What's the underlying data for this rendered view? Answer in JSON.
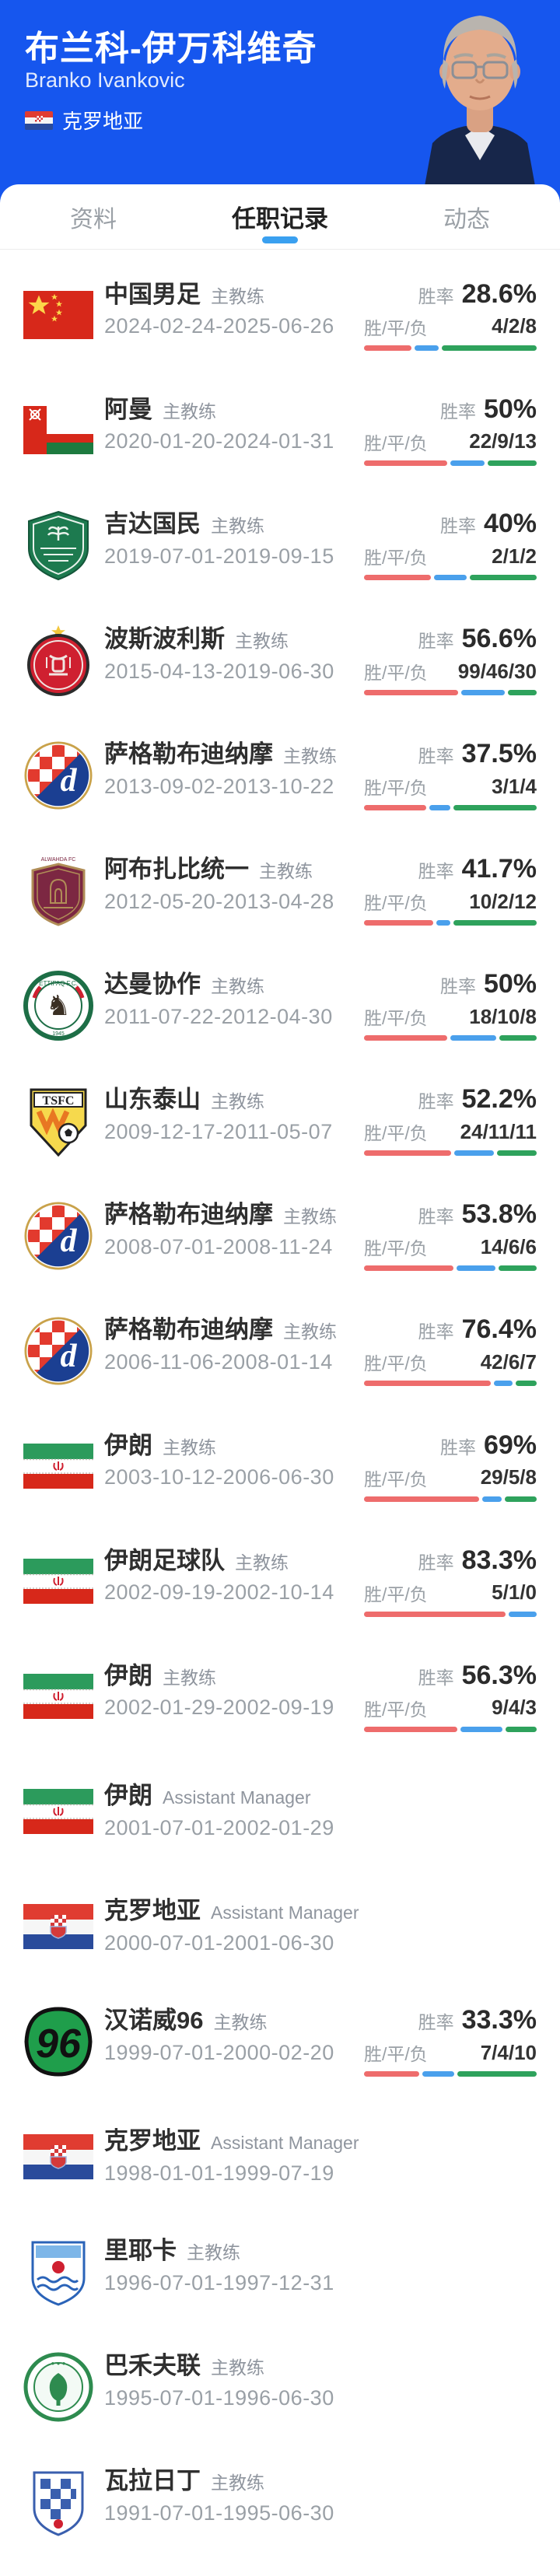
{
  "header": {
    "title": "布兰科-伊万科维奇",
    "subtitle": "Branko Ivankovic",
    "nationality": "克罗地亚",
    "nationality_flag": "croatia-flag-icon"
  },
  "tabs": [
    {
      "label": "资料",
      "active": false
    },
    {
      "label": "任职记录",
      "active": true
    },
    {
      "label": "动态",
      "active": false
    }
  ],
  "labels": {
    "win_rate": "胜率",
    "wdl": "胜/平/负"
  },
  "colors": {
    "header_accent": "#1656ee",
    "tab_indicator": "#3aa0f0",
    "win": "#ee6c6c",
    "draw": "#4aa0ec",
    "loss": "#2ea25c"
  },
  "entries": [
    {
      "team": "中国男足",
      "role": "主教练",
      "dates": "2024-02-24-2025-06-26",
      "win_rate": "28.6%",
      "record": "4/2/8",
      "w": 4,
      "d": 2,
      "l": 8,
      "logo": "china-flag"
    },
    {
      "team": "阿曼",
      "role": "主教练",
      "dates": "2020-01-20-2024-01-31",
      "win_rate": "50%",
      "record": "22/9/13",
      "w": 22,
      "d": 9,
      "l": 13,
      "logo": "oman-flag"
    },
    {
      "team": "吉达国民",
      "role": "主教练",
      "dates": "2019-07-01-2019-09-15",
      "win_rate": "40%",
      "record": "2/1/2",
      "w": 2,
      "d": 1,
      "l": 2,
      "logo": "alahli-crest"
    },
    {
      "team": "波斯波利斯",
      "role": "主教练",
      "dates": "2015-04-13-2019-06-30",
      "win_rate": "56.6%",
      "record": "99/46/30",
      "w": 99,
      "d": 46,
      "l": 30,
      "logo": "persepolis-crest"
    },
    {
      "team": "萨格勒布迪纳摩",
      "role": "主教练",
      "dates": "2013-09-02-2013-10-22",
      "win_rate": "37.5%",
      "record": "3/1/4",
      "w": 3,
      "d": 1,
      "l": 4,
      "logo": "dinamo-crest"
    },
    {
      "team": "阿布扎比统一",
      "role": "主教练",
      "dates": "2012-05-20-2013-04-28",
      "win_rate": "41.7%",
      "record": "10/2/12",
      "w": 10,
      "d": 2,
      "l": 12,
      "logo": "alwahda-crest"
    },
    {
      "team": "达曼协作",
      "role": "主教练",
      "dates": "2011-07-22-2012-04-30",
      "win_rate": "50%",
      "record": "18/10/8",
      "w": 18,
      "d": 10,
      "l": 8,
      "logo": "ettifaq-crest"
    },
    {
      "team": "山东泰山",
      "role": "主教练",
      "dates": "2009-12-17-2011-05-07",
      "win_rate": "52.2%",
      "record": "24/11/11",
      "w": 24,
      "d": 11,
      "l": 11,
      "logo": "taishan-crest"
    },
    {
      "team": "萨格勒布迪纳摩",
      "role": "主教练",
      "dates": "2008-07-01-2008-11-24",
      "win_rate": "53.8%",
      "record": "14/6/6",
      "w": 14,
      "d": 6,
      "l": 6,
      "logo": "dinamo-crest"
    },
    {
      "team": "萨格勒布迪纳摩",
      "role": "主教练",
      "dates": "2006-11-06-2008-01-14",
      "win_rate": "76.4%",
      "record": "42/6/7",
      "w": 42,
      "d": 6,
      "l": 7,
      "logo": "dinamo-crest"
    },
    {
      "team": "伊朗",
      "role": "主教练",
      "dates": "2003-10-12-2006-06-30",
      "win_rate": "69%",
      "record": "29/5/8",
      "w": 29,
      "d": 5,
      "l": 8,
      "logo": "iran-flag"
    },
    {
      "team": "伊朗足球队",
      "role": "主教练",
      "dates": "2002-09-19-2002-10-14",
      "win_rate": "83.3%",
      "record": "5/1/0",
      "w": 5,
      "d": 1,
      "l": 0,
      "logo": "iran-flag"
    },
    {
      "team": "伊朗",
      "role": "主教练",
      "dates": "2002-01-29-2002-09-19",
      "win_rate": "56.3%",
      "record": "9/4/3",
      "w": 9,
      "d": 4,
      "l": 3,
      "logo": "iran-flag"
    },
    {
      "team": "伊朗",
      "role": "Assistant Manager",
      "dates": "2001-07-01-2002-01-29",
      "win_rate": null,
      "record": null,
      "logo": "iran-flag"
    },
    {
      "team": "克罗地亚",
      "role": "Assistant Manager",
      "dates": "2000-07-01-2001-06-30",
      "win_rate": null,
      "record": null,
      "logo": "croatia-flag"
    },
    {
      "team": "汉诺威96",
      "role": "主教练",
      "dates": "1999-07-01-2000-02-20",
      "win_rate": "33.3%",
      "record": "7/4/10",
      "w": 7,
      "d": 4,
      "l": 10,
      "logo": "hannover-crest"
    },
    {
      "team": "克罗地亚",
      "role": "Assistant Manager",
      "dates": "1998-01-01-1999-07-19",
      "win_rate": null,
      "record": null,
      "logo": "croatia-flag"
    },
    {
      "team": "里耶卡",
      "role": "主教练",
      "dates": "1996-07-01-1997-12-31",
      "win_rate": null,
      "record": null,
      "logo": "rijeka-crest"
    },
    {
      "team": "巴禾夫联",
      "role": "主教练",
      "dates": "1995-07-01-1996-06-30",
      "win_rate": null,
      "record": null,
      "logo": "bahefu-crest"
    },
    {
      "team": "瓦拉日丁",
      "role": "主教练",
      "dates": "1991-07-01-1995-06-30",
      "win_rate": null,
      "record": null,
      "logo": "varazdin-crest"
    }
  ]
}
